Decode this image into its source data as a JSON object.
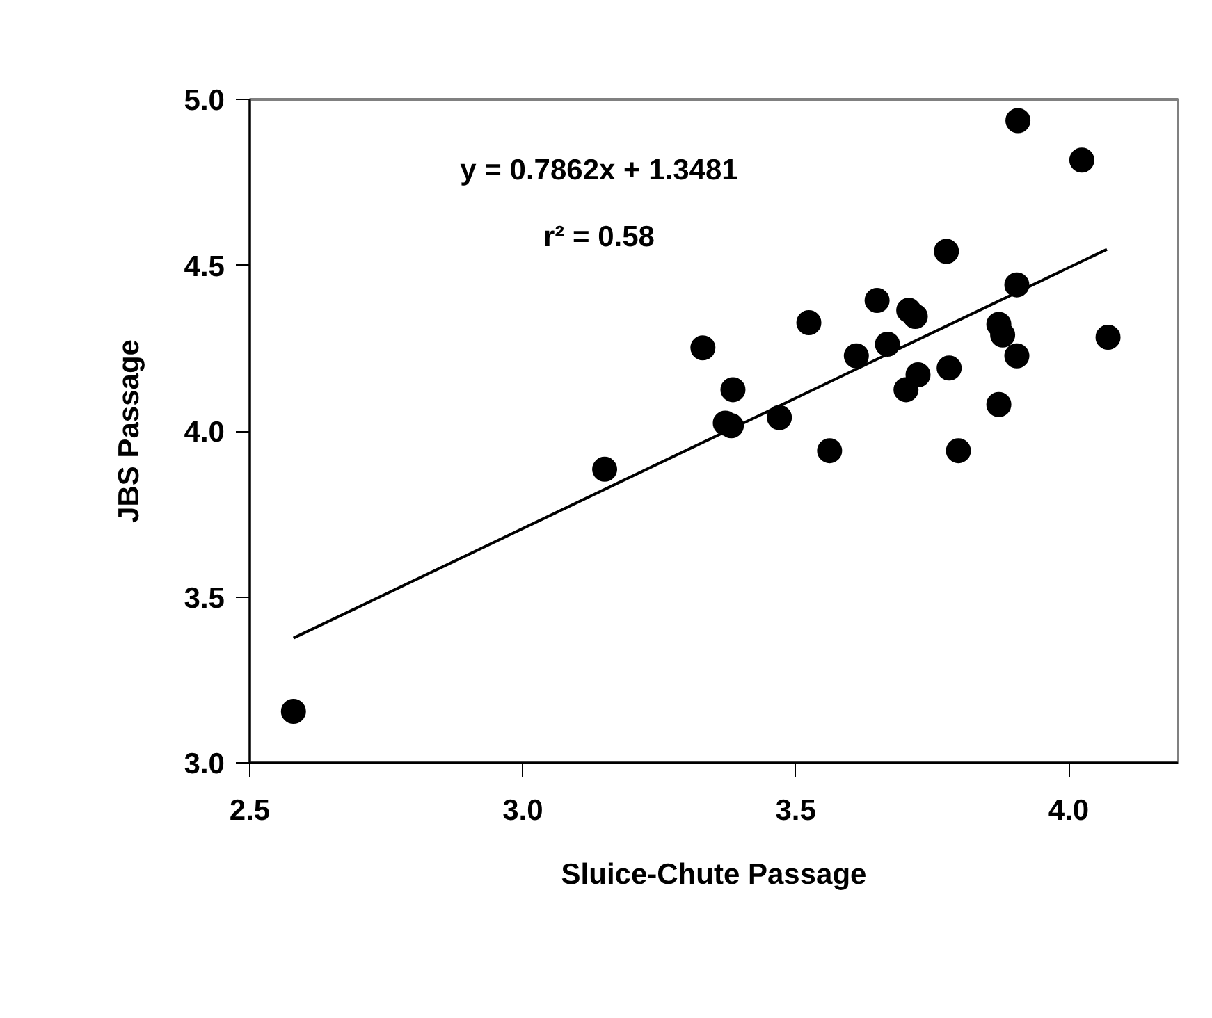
{
  "chart_data": {
    "type": "scatter",
    "xlabel": "Sluice-Chute Passage",
    "ylabel": "JBS Passage",
    "annotations": [
      "y = 0.7862x + 1.3481",
      "r² = 0.58"
    ],
    "xlim": [
      2.5,
      4.2
    ],
    "xticks": [
      {
        "value": 2.5,
        "label": "2.5"
      },
      {
        "value": 3,
        "label": "3.0"
      },
      {
        "value": 3.5,
        "label": "3.5"
      },
      {
        "value": 4,
        "label": "4.0"
      }
    ],
    "ylim": [
      3.0,
      5.0
    ],
    "yticks": [
      {
        "value": 3,
        "label": "3.0"
      },
      {
        "value": 3.5,
        "label": "3.5"
      },
      {
        "value": 4,
        "label": "4.0"
      },
      {
        "value": 4.5,
        "label": "4.5"
      },
      {
        "value": 5,
        "label": "5.0"
      }
    ],
    "marker": "circle",
    "series": [
      {
        "color": "#000000",
        "x": [
          3.907,
          4.024,
          3.776,
          3.905,
          3.649,
          3.707,
          3.719,
          3.524,
          3.872,
          3.879,
          4.072,
          3.33,
          3.668,
          3.611,
          3.905,
          3.781,
          3.724,
          3.702,
          3.385,
          3.872,
          3.47,
          3.371,
          3.382,
          3.562,
          3.798,
          3.15,
          2.58
        ],
        "values": [
          4.936,
          4.817,
          4.542,
          4.441,
          4.394,
          4.364,
          4.346,
          4.327,
          4.322,
          4.29,
          4.283,
          4.251,
          4.262,
          4.227,
          4.227,
          4.19,
          4.17,
          4.125,
          4.125,
          4.08,
          4.041,
          4.024,
          4.016,
          3.941,
          3.941,
          3.885,
          3.155
        ]
      },
      {
        "type": "line",
        "color": "#000000",
        "line_style": "solid",
        "marker": "none",
        "x": [
          2.58,
          4.07
        ],
        "values": [
          3.376,
          4.548
        ]
      }
    ]
  }
}
